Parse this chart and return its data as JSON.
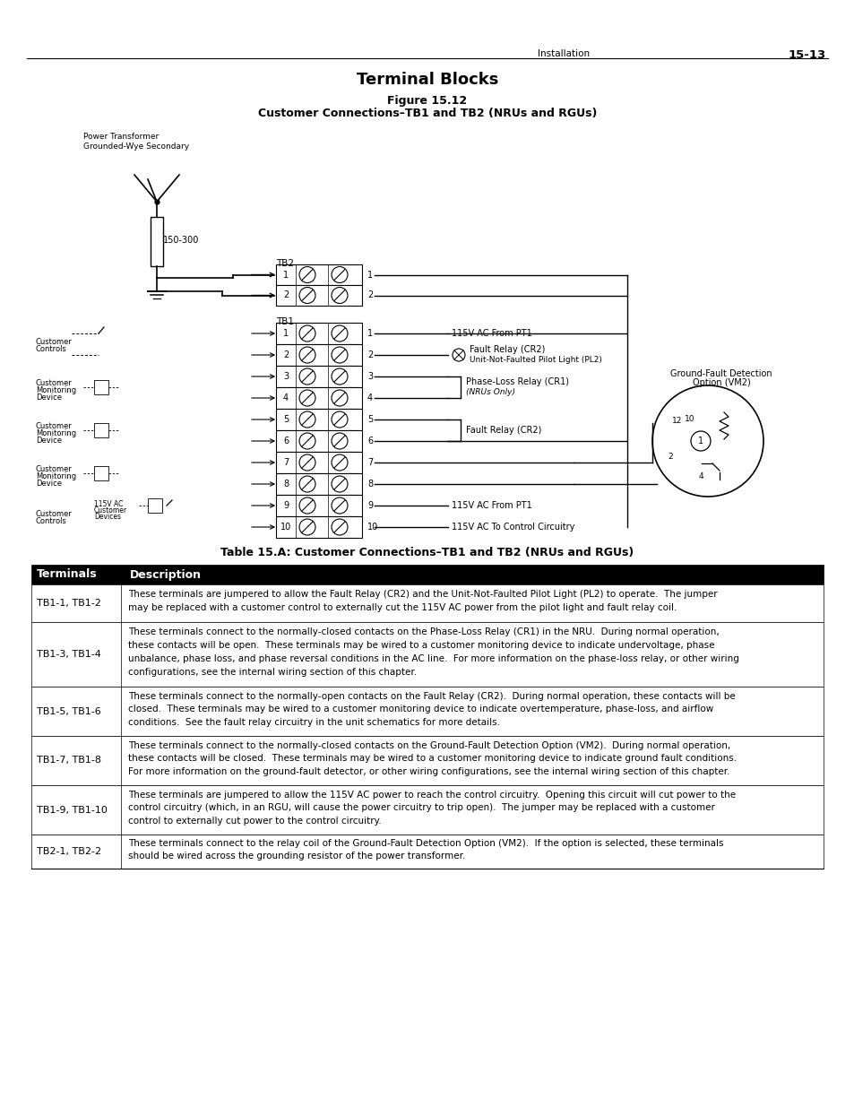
{
  "page_header_left": "Installation",
  "page_header_right": "15-13",
  "title": "Terminal Blocks",
  "figure_label": "Figure 15.12",
  "figure_caption": "Customer Connections–TB1 and TB2 (NRUs and RGUs)",
  "table_title": "Table 15.A: Customer Connections–TB1 and TB2 (NRUs and RGUs)",
  "table_headers": [
    "Terminals",
    "Description"
  ],
  "table_rows": [
    [
      "TB1-1, TB1-2",
      "These terminals are jumpered to allow the Fault Relay (CR2) and the Unit-Not-Faulted Pilot Light (PL2) to operate.  The jumper\nmay be replaced with a customer control to externally cut the 115V AC power from the pilot light and fault relay coil."
    ],
    [
      "TB1-3, TB1-4",
      "These terminals connect to the normally-closed contacts on the Phase-Loss Relay (CR1) in the NRU.  During normal operation,\nthese contacts will be open.  These terminals may be wired to a customer monitoring device to indicate undervoltage, phase\nunbalance, phase loss, and phase reversal conditions in the AC line.  For more information on the phase-loss relay, or other wiring\nconfigurations, see the internal wiring section of this chapter."
    ],
    [
      "TB1-5, TB1-6",
      "These terminals connect to the normally-open contacts on the Fault Relay (CR2).  During normal operation, these contacts will be\nclosed.  These terminals may be wired to a customer monitoring device to indicate overtemperature, phase-loss, and airflow\nconditions.  See the fault relay circuitry in the unit schematics for more details."
    ],
    [
      "TB1-7, TB1-8",
      "These terminals connect to the normally-closed contacts on the Ground-Fault Detection Option (VM2).  During normal operation,\nthese contacts will be closed.  These terminals may be wired to a customer monitoring device to indicate ground fault conditions.\nFor more information on the ground-fault detector, or other wiring configurations, see the internal wiring section of this chapter."
    ],
    [
      "TB1-9, TB1-10",
      "These terminals are jumpered to allow the 115V AC power to reach the control circuitry.  Opening this circuit will cut power to the\ncontrol circuitry (which, in an RGU, will cause the power circuitry to trip open).  The jumper may be replaced with a customer\ncontrol to externally cut power to the control circuitry."
    ],
    [
      "TB2-1, TB2-2",
      "These terminals connect to the relay coil of the Ground-Fault Detection Option (VM2).  If the option is selected, these terminals\nshould be wired across the grounding resistor of the power transformer."
    ]
  ],
  "bg_color": "#ffffff",
  "text_color": "#000000",
  "header_bg": "#000000",
  "header_fg": "#ffffff",
  "row_bg": "#ffffff"
}
